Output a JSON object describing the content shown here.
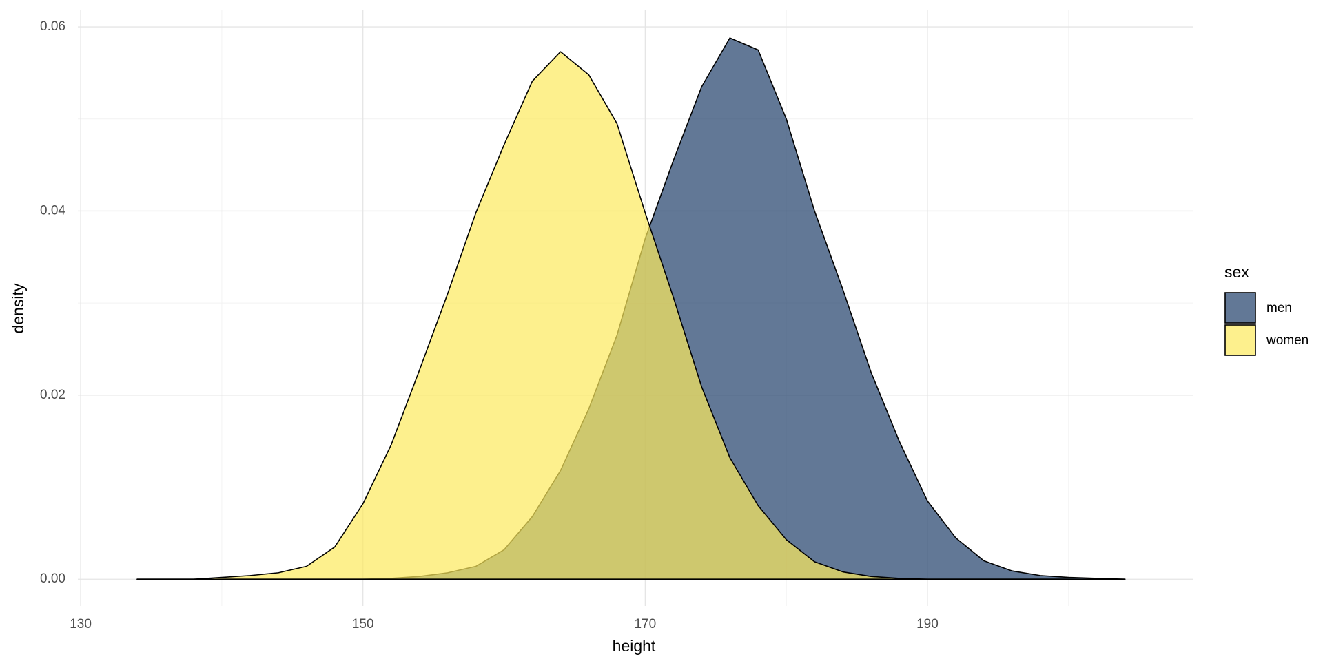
{
  "chart_data": {
    "type": "area",
    "x_label": "height",
    "y_label": "density",
    "legend_title": "sex",
    "x": [
      134,
      136,
      138,
      140,
      142,
      144,
      146,
      148,
      150,
      152,
      154,
      156,
      158,
      160,
      162,
      164,
      166,
      168,
      170,
      172,
      174,
      176,
      178,
      180,
      182,
      184,
      186,
      188,
      190,
      192,
      194,
      196,
      198,
      200,
      202,
      204
    ],
    "series": [
      {
        "name": "men",
        "color": "#203e69",
        "values": [
          0,
          0,
          0,
          0,
          0,
          0,
          0,
          0,
          0,
          0.0001,
          0.0003,
          0.0007,
          0.0014,
          0.0032,
          0.0068,
          0.0118,
          0.0185,
          0.0265,
          0.037,
          0.0455,
          0.0535,
          0.0588,
          0.0575,
          0.05,
          0.04,
          0.0315,
          0.0225,
          0.015,
          0.0085,
          0.0045,
          0.002,
          0.0009,
          0.0004,
          0.0002,
          0.0001,
          0
        ]
      },
      {
        "name": "women",
        "color": "#fcea5c",
        "values": [
          0,
          0,
          0,
          0.0002,
          0.0004,
          0.0007,
          0.0014,
          0.0035,
          0.0082,
          0.0146,
          0.0227,
          0.031,
          0.0398,
          0.0472,
          0.0541,
          0.0573,
          0.0548,
          0.0495,
          0.0398,
          0.0306,
          0.0209,
          0.0132,
          0.008,
          0.0043,
          0.0019,
          0.0008,
          0.0003,
          0.0001,
          0,
          0,
          0,
          0,
          0,
          0,
          0,
          0
        ]
      }
    ],
    "opacity": 0.7,
    "xlim": [
      129.8,
      208.8
    ],
    "xticks": [
      130,
      150,
      170,
      190
    ],
    "xminorticks": [
      140,
      160,
      180,
      200
    ],
    "ylim": [
      -0.0029,
      0.0618
    ],
    "yticks": [
      {
        "value": 0,
        "label": "0.00"
      },
      {
        "value": 0.02,
        "label": "0.02"
      },
      {
        "value": 0.04,
        "label": "0.04"
      },
      {
        "value": 0.06,
        "label": "0.06"
      }
    ],
    "yminorticks": [
      0.01,
      0.03,
      0.05
    ],
    "grid": true,
    "legend": "right"
  }
}
